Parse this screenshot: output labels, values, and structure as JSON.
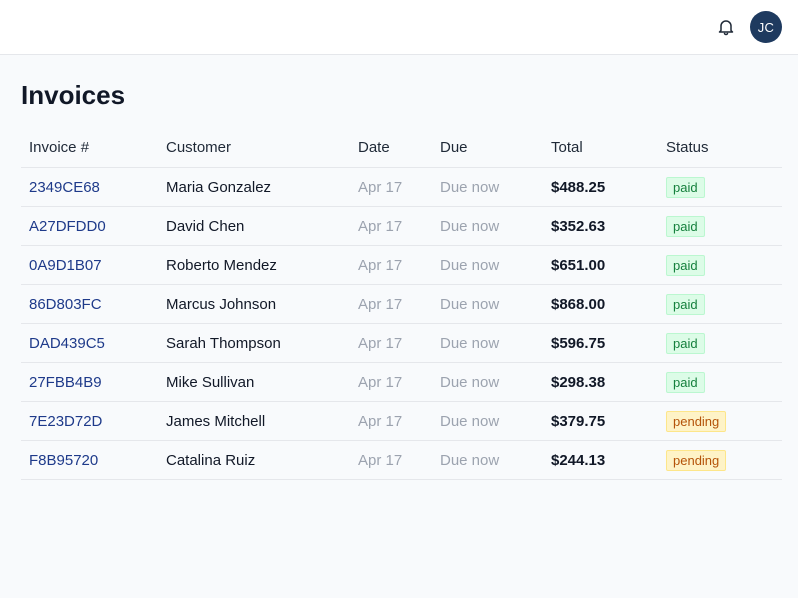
{
  "header": {
    "avatar_initials": "JC",
    "bell_icon": "bell-icon"
  },
  "page": {
    "title": "Invoices"
  },
  "table": {
    "columns": [
      "Invoice #",
      "Customer",
      "Date",
      "Due",
      "Total",
      "Status"
    ],
    "rows": [
      {
        "invoice": "2349CE68",
        "customer": "Maria Gonzalez",
        "date": "Apr 17",
        "due": "Due now",
        "total": "$488.25",
        "status": "paid"
      },
      {
        "invoice": "A27DFDD0",
        "customer": "David Chen",
        "date": "Apr 17",
        "due": "Due now",
        "total": "$352.63",
        "status": "paid"
      },
      {
        "invoice": "0A9D1B07",
        "customer": "Roberto Mendez",
        "date": "Apr 17",
        "due": "Due now",
        "total": "$651.00",
        "status": "paid"
      },
      {
        "invoice": "86D803FC",
        "customer": "Marcus Johnson",
        "date": "Apr 17",
        "due": "Due now",
        "total": "$868.00",
        "status": "paid"
      },
      {
        "invoice": "DAD439C5",
        "customer": "Sarah Thompson",
        "date": "Apr 17",
        "due": "Due now",
        "total": "$596.75",
        "status": "paid"
      },
      {
        "invoice": "27FBB4B9",
        "customer": "Mike Sullivan",
        "date": "Apr 17",
        "due": "Due now",
        "total": "$298.38",
        "status": "paid"
      },
      {
        "invoice": "7E23D72D",
        "customer": "James Mitchell",
        "date": "Apr 17",
        "due": "Due now",
        "total": "$379.75",
        "status": "pending"
      },
      {
        "invoice": "F8B95720",
        "customer": "Catalina Ruiz",
        "date": "Apr 17",
        "due": "Due now",
        "total": "$244.13",
        "status": "pending"
      }
    ]
  },
  "colors": {
    "accent": "#1e3a5f",
    "paid": "#15803d",
    "pending": "#b45309"
  }
}
